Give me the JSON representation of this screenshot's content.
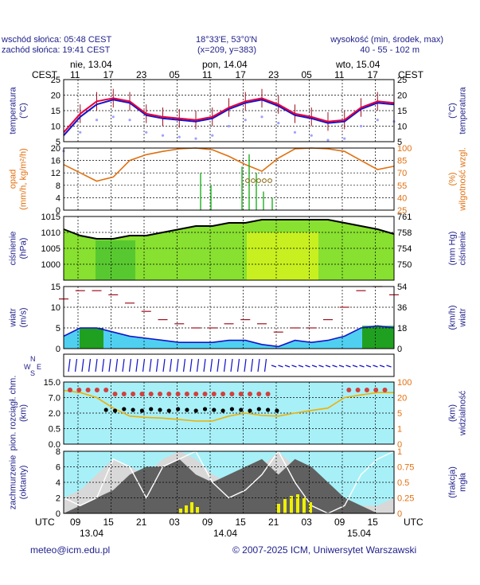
{
  "header": {
    "sunrise": "wschód słońca: 05:48 CEST",
    "sunset": "zachód słońca: 19:41 CEST",
    "coords": "18°33'E, 53°0'N",
    "grid": "(x=209,  y=383)",
    "height_label": "wysokość (min, środek, max)",
    "height_values": "40 - 55 - 102 m"
  },
  "days_top": [
    "nie, 13.04",
    "pon, 14.04",
    "wto, 15.04"
  ],
  "cest_label": "CEST",
  "utc_label": "UTC",
  "hours_top": [
    "11",
    "17",
    "23",
    "05",
    "11",
    "17",
    "23",
    "05",
    "11",
    "17"
  ],
  "hours_bottom": [
    "09",
    "15",
    "21",
    "03",
    "09",
    "15",
    "21",
    "03",
    "09",
    "15"
  ],
  "days_bottom": [
    "13.04",
    "14.04",
    "15.04"
  ],
  "footer": {
    "email": "meteo@icm.edu.pl",
    "copyright": "© 2007-2025 ICM, Uniwersytet Warszawski"
  },
  "colors": {
    "label": "#22228c",
    "orange": "#e07010",
    "red": "#e8003c",
    "blue": "#1414c8",
    "green": "#20b020",
    "cyan": "#a8f0f8"
  },
  "chart_data": [
    {
      "type": "line",
      "panel": "temperature",
      "ylabel_left": "temperatura\n(°C)",
      "ylabel_right": "(°C)\ntemperatura",
      "ylim": [
        5,
        25
      ],
      "yticks": [
        "25",
        "20",
        "15",
        "10",
        "5"
      ],
      "x_hours": [
        0,
        3,
        6,
        9,
        12,
        15,
        18,
        21,
        24,
        27,
        30,
        33,
        36,
        39,
        42,
        45,
        48,
        51,
        54,
        57,
        60
      ],
      "series": [
        {
          "values": [
            8,
            14,
            18,
            19,
            18,
            14,
            13,
            12.5,
            12,
            13,
            16,
            18,
            19,
            17,
            14,
            13,
            11.5,
            12,
            16,
            18,
            17.5
          ]
        },
        {
          "values": [
            7,
            13,
            17,
            18.5,
            17.5,
            13.5,
            12.5,
            12,
            11.5,
            12.5,
            15.5,
            17.5,
            18.5,
            16.5,
            13.5,
            12.5,
            11,
            11.5,
            15.5,
            17.5,
            17
          ]
        }
      ]
    },
    {
      "type": "line",
      "panel": "precipitation_humidity",
      "ylabel_left": "opad\n(mm/h, kg/m²/h)",
      "ylabel_right": "(%)\nwilgotność wzgl.",
      "ylim_left": [
        0,
        20
      ],
      "ylim_right": [
        25,
        100
      ],
      "yticks_left": [
        "20",
        "16",
        "12",
        "8",
        "4",
        "0"
      ],
      "yticks_right": [
        "100",
        "85",
        "70",
        "55",
        "40",
        "25"
      ],
      "series": [
        {
          "name": "",
          "values": [
            80,
            70,
            60,
            65,
            85,
            92,
            96,
            99,
            100,
            98,
            90,
            80,
            72,
            88,
            99,
            100,
            99,
            96,
            85,
            74,
            78
          ]
        }
      ]
    },
    {
      "type": "line",
      "panel": "pressure",
      "ylabel_left": "ciśnienie\n(hPa)",
      "ylabel_right": "(mm Hg)\nciśnienie",
      "ylim": [
        995,
        1015
      ],
      "yticks_left": [
        "1015",
        "1010",
        "1005",
        "1000"
      ],
      "yticks_right": [
        "761",
        "758",
        "754",
        "750"
      ],
      "series": [
        {
          "values": [
            1011,
            1009,
            1008,
            1008,
            1009,
            1009,
            1010,
            1011,
            1012,
            1012,
            1013,
            1013,
            1014,
            1014,
            1014,
            1014,
            1014,
            1013,
            1012,
            1011,
            1009.5
          ]
        }
      ]
    },
    {
      "type": "line",
      "panel": "wind",
      "ylabel_left": "wiatr\n(m/s)",
      "ylabel_right": "(km/h)\nwiatr",
      "ylim": [
        0,
        15
      ],
      "yticks_left": [
        "15",
        "10",
        "5",
        "0"
      ],
      "yticks_right": [
        "54",
        "36",
        "18",
        "0"
      ],
      "series": [
        {
          "values": [
            3,
            5,
            5,
            4,
            3,
            2.5,
            2,
            1.5,
            1.5,
            1.5,
            2,
            2,
            1,
            0.5,
            2,
            1.5,
            2,
            3,
            5,
            5.5,
            5
          ]
        },
        {
          "values": [
            12,
            14,
            14,
            13,
            11,
            9,
            7,
            6,
            5,
            5,
            6,
            7,
            6,
            4,
            5,
            5,
            7,
            10,
            14,
            15,
            13
          ]
        }
      ]
    },
    {
      "type": "line",
      "panel": "visibility_clouds",
      "ylabel_left": "pion. rozciągł. chm.\n(km)",
      "ylabel_right": "(km)\nwidzialność",
      "yticks_left": [
        "15.0",
        "7.0",
        "2.0",
        "0.5",
        "0.0"
      ],
      "yticks_right": [
        "100",
        "20",
        "5",
        "1",
        "0"
      ],
      "series": [
        {
          "values": [
            10,
            9,
            7,
            4,
            2.5,
            2.3,
            2.2,
            2,
            1.8,
            1.8,
            2.5,
            3,
            2.6,
            2.5,
            3,
            3.5,
            4,
            7,
            8,
            9,
            9
          ]
        }
      ]
    },
    {
      "type": "area",
      "panel": "cloudiness",
      "ylabel_left": "zachmurzenie\n(oktanty)",
      "ylabel_right": "(frakcja)\nmgła",
      "ylim": [
        0,
        8
      ],
      "yticks_left": [
        "8",
        "6",
        "4",
        "2",
        "0"
      ],
      "yticks_right": [
        "1",
        "0.75",
        "0.5",
        "0.25",
        "0"
      ],
      "series": [
        {
          "values": [
            2,
            3,
            5,
            7,
            6,
            5,
            7,
            8,
            7,
            5,
            4,
            4,
            6,
            8,
            6,
            3,
            2,
            1,
            1,
            1,
            2
          ]
        },
        {
          "values": [
            0,
            1,
            2,
            3,
            5,
            6,
            6,
            7,
            5,
            4,
            5,
            6,
            7,
            5,
            7,
            6,
            4,
            2,
            1,
            0,
            0
          ]
        },
        {
          "values": [
            2,
            1,
            2,
            7,
            6,
            2,
            6,
            7,
            8,
            4,
            2,
            3,
            5,
            8,
            4,
            1,
            0,
            1,
            5,
            7,
            8
          ]
        }
      ]
    }
  ]
}
